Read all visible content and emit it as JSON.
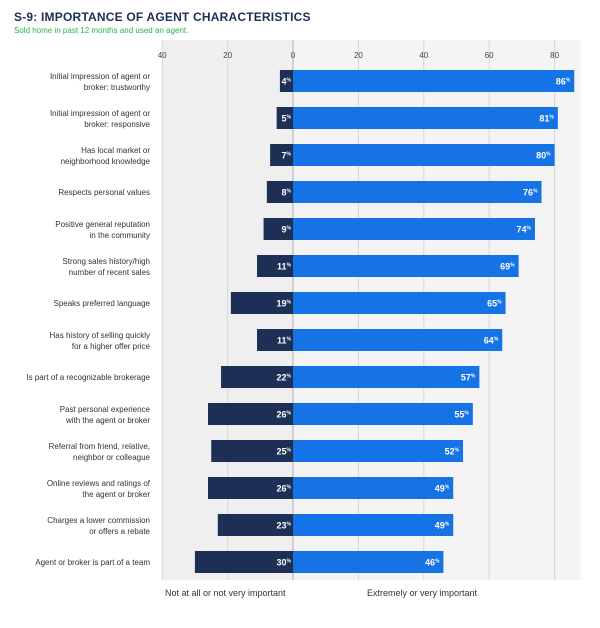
{
  "header": {
    "title": "S-9: IMPORTANCE OF AGENT CHARACTERISTICS",
    "subtitle": "Sold home in past 12 months and used an agent."
  },
  "legend": {
    "left": "Not at all or not very important",
    "right": "Extremely or very important"
  },
  "chart_data": {
    "type": "bar",
    "orientation": "horizontal-diverging",
    "x_ticks_left": [
      "40",
      "20",
      "0"
    ],
    "x_ticks_right": [
      "20",
      "40",
      "60",
      "80"
    ],
    "xlim": [
      -40,
      88
    ],
    "value_suffix": "%",
    "grid": true,
    "categories": [
      [
        "Initial impression of agent or",
        "broker: trustworthy"
      ],
      [
        "Initial impression of agent or",
        "broker: responsive"
      ],
      [
        "Has local market or",
        "neighborhood knowledge"
      ],
      [
        "Respects personal values"
      ],
      [
        "Positive general reputation",
        "in the community"
      ],
      [
        "Strong sales history/high",
        "number of recent sales"
      ],
      [
        "Speaks preferred language"
      ],
      [
        "Has history of selling quickly",
        "for a higher offer price"
      ],
      [
        "Is part of a recognizable brokerage"
      ],
      [
        "Past personal experience",
        "with the agent or broker"
      ],
      [
        "Referral from friend, relative,",
        "neighbor or colleague"
      ],
      [
        "Online reviews and ratings of",
        "the agent or broker"
      ],
      [
        "Charges a lower commission",
        "or offers a rebate"
      ],
      [
        "Agent or broker is part of a team"
      ]
    ],
    "series": [
      {
        "name": "Not at all or not very important",
        "color": "#1d2f55",
        "values": [
          4,
          5,
          7,
          8,
          9,
          11,
          19,
          11,
          22,
          26,
          25,
          26,
          23,
          30
        ]
      },
      {
        "name": "Extremely or very important",
        "color": "#1673e6",
        "values": [
          86,
          81,
          80,
          76,
          74,
          69,
          65,
          64,
          57,
          55,
          52,
          49,
          49,
          46
        ]
      }
    ]
  }
}
